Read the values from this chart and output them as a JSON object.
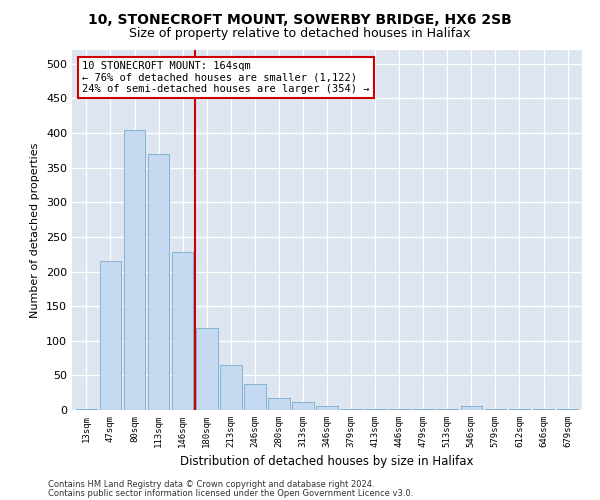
{
  "title1": "10, STONECROFT MOUNT, SOWERBY BRIDGE, HX6 2SB",
  "title2": "Size of property relative to detached houses in Halifax",
  "xlabel": "Distribution of detached houses by size in Halifax",
  "ylabel": "Number of detached properties",
  "bar_labels": [
    "13sqm",
    "47sqm",
    "80sqm",
    "113sqm",
    "146sqm",
    "180sqm",
    "213sqm",
    "246sqm",
    "280sqm",
    "313sqm",
    "346sqm",
    "379sqm",
    "413sqm",
    "446sqm",
    "479sqm",
    "513sqm",
    "546sqm",
    "579sqm",
    "612sqm",
    "646sqm",
    "679sqm"
  ],
  "bar_values": [
    2,
    215,
    405,
    370,
    228,
    118,
    65,
    38,
    17,
    12,
    6,
    2,
    1,
    1,
    1,
    1,
    6,
    2,
    1,
    1,
    1
  ],
  "bar_color": "#c5d9f1",
  "bar_edge_color": "#7aaccf",
  "vline_x": 4.5,
  "vline_color": "#cc0000",
  "annotation_line1": "10 STONECROFT MOUNT: 164sqm",
  "annotation_line2": "← 76% of detached houses are smaller (1,122)",
  "annotation_line3": "24% of semi-detached houses are larger (354) →",
  "annotation_box_color": "#ffffff",
  "annotation_box_edge": "#cc0000",
  "ylim": [
    0,
    520
  ],
  "yticks": [
    0,
    50,
    100,
    150,
    200,
    250,
    300,
    350,
    400,
    450,
    500
  ],
  "background_color": "#dde6f0",
  "plot_bg_color": "#dde6f0",
  "footer1": "Contains HM Land Registry data © Crown copyright and database right 2024.",
  "footer2": "Contains public sector information licensed under the Open Government Licence v3.0.",
  "title1_fontsize": 10,
  "title2_fontsize": 9,
  "bar_width": 0.9
}
